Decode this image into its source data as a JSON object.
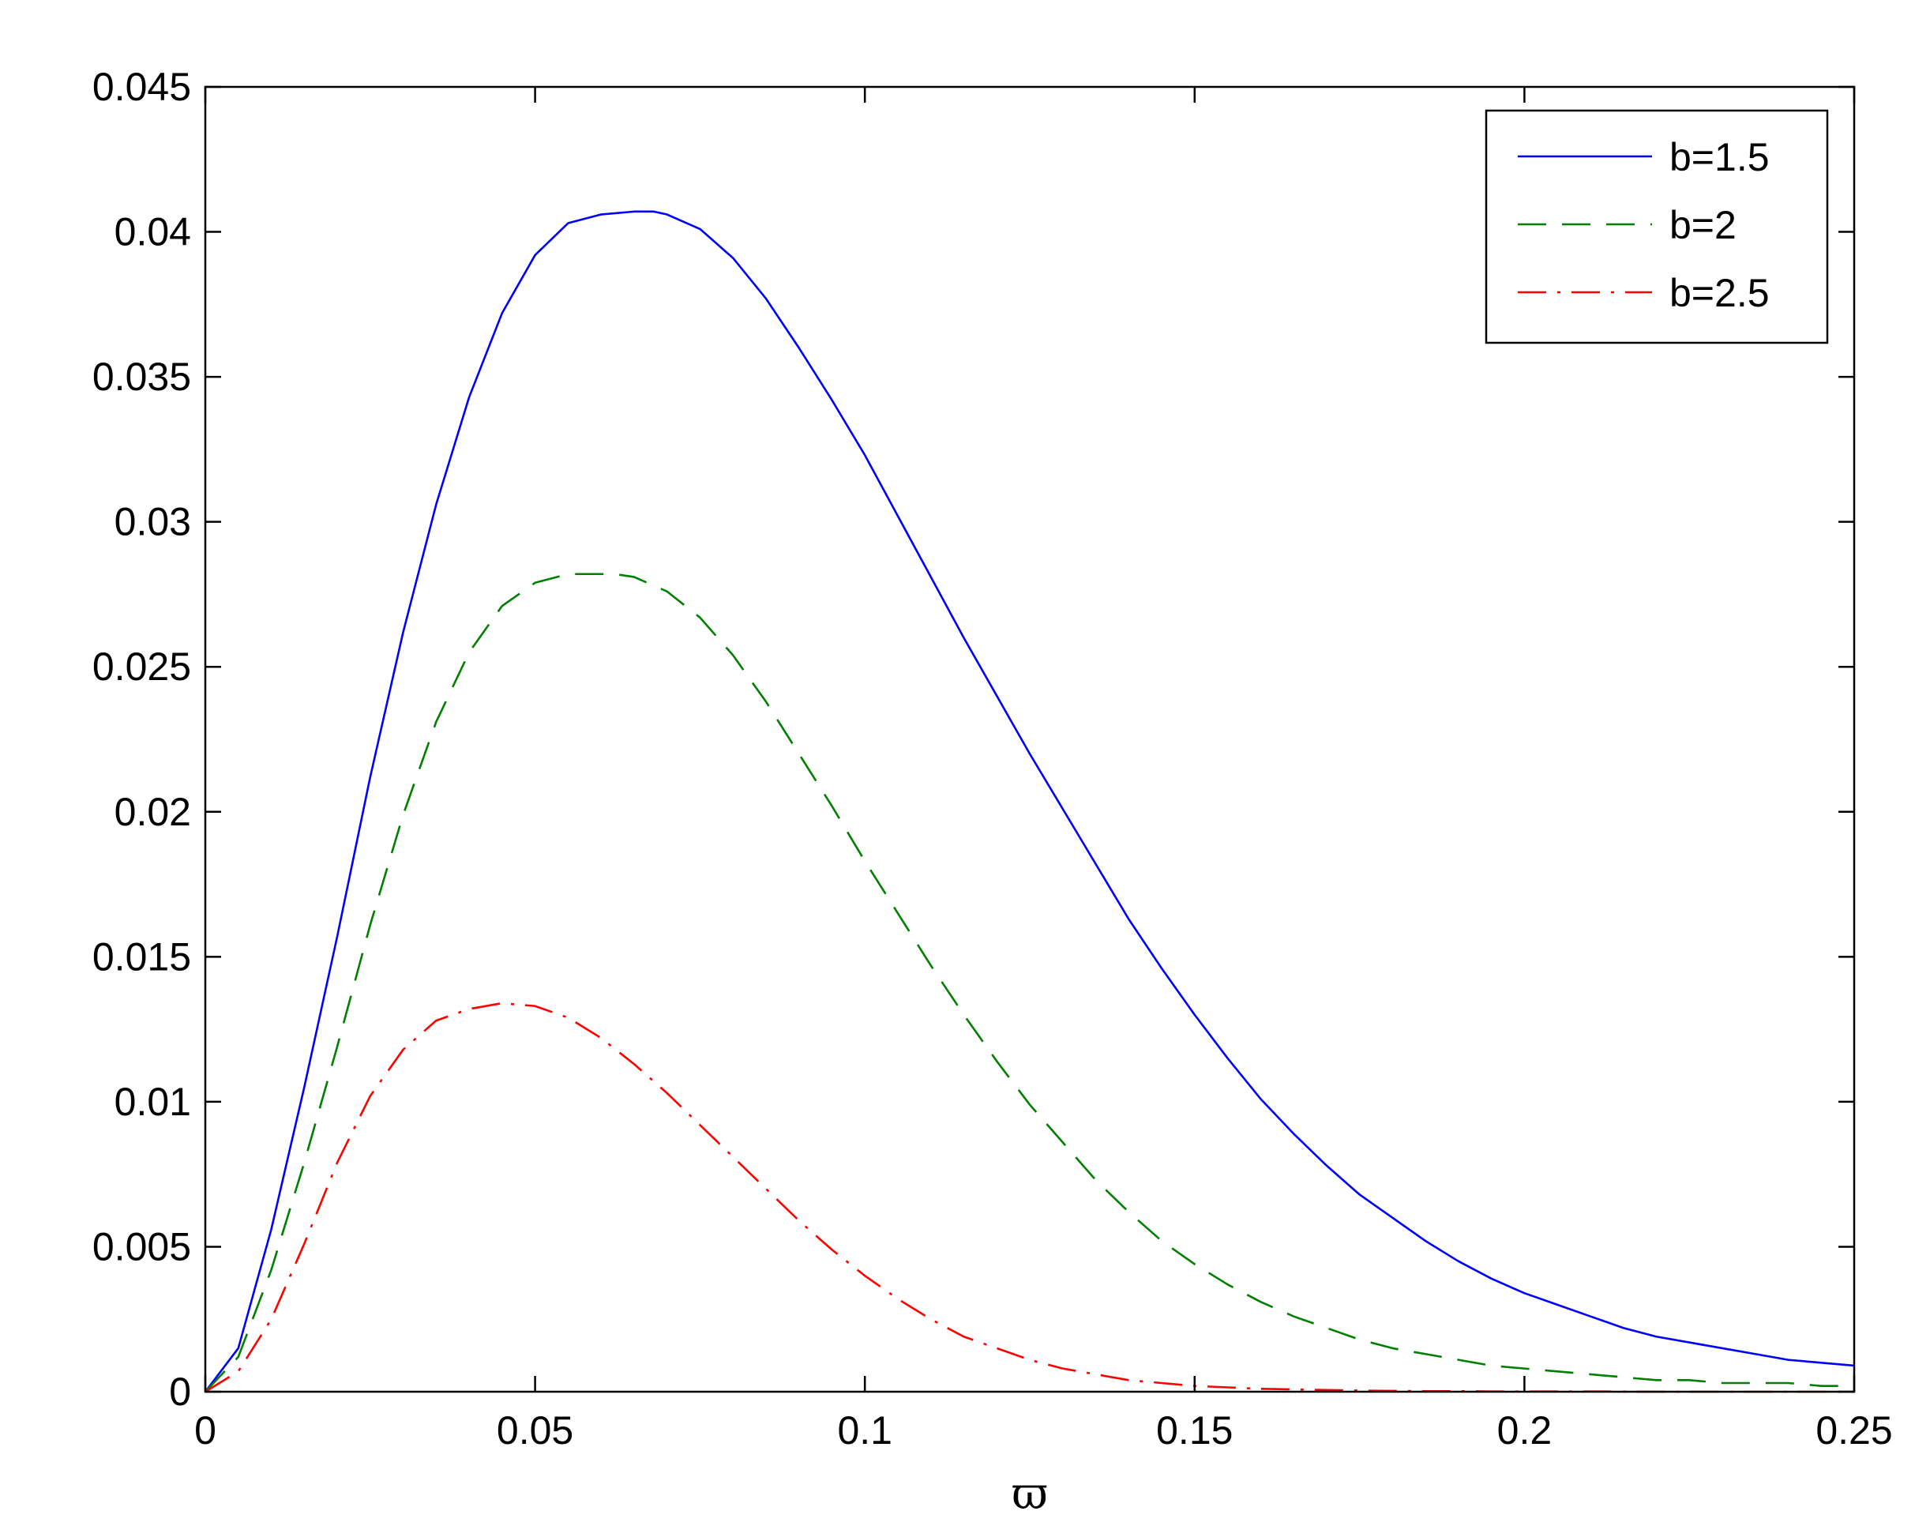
{
  "chart_data": {
    "type": "line",
    "title": "",
    "xlabel": "ϖ",
    "ylabel": "",
    "xlim": [
      0,
      0.25
    ],
    "ylim": [
      0,
      0.045
    ],
    "x_ticks": [
      "0",
      "0.05",
      "0.1",
      "0.15",
      "0.2",
      "0.25"
    ],
    "x_tick_values": [
      0,
      0.05,
      0.1,
      0.15,
      0.2,
      0.25
    ],
    "y_ticks": [
      "0",
      "0.005",
      "0.01",
      "0.015",
      "0.02",
      "0.025",
      "0.03",
      "0.035",
      "0.04",
      "0.045"
    ],
    "y_tick_values": [
      0,
      0.005,
      0.01,
      0.015,
      0.02,
      0.025,
      0.03,
      0.035,
      0.04,
      0.045
    ],
    "grid": false,
    "legend_position": "top-right",
    "series": [
      {
        "name": "b=1.5",
        "color": "#0000ff",
        "style": "solid",
        "x": [
          0,
          0.005,
          0.01,
          0.015,
          0.02,
          0.025,
          0.03,
          0.035,
          0.04,
          0.045,
          0.05,
          0.055,
          0.06,
          0.065,
          0.068,
          0.07,
          0.075,
          0.08,
          0.085,
          0.09,
          0.095,
          0.1,
          0.105,
          0.11,
          0.115,
          0.12,
          0.125,
          0.13,
          0.135,
          0.14,
          0.145,
          0.15,
          0.155,
          0.16,
          0.165,
          0.17,
          0.175,
          0.18,
          0.185,
          0.19,
          0.195,
          0.2,
          0.205,
          0.21,
          0.215,
          0.22,
          0.225,
          0.23,
          0.235,
          0.24,
          0.245,
          0.25
        ],
        "y": [
          0,
          0.0015,
          0.0056,
          0.0105,
          0.0157,
          0.0212,
          0.0262,
          0.0306,
          0.0343,
          0.0372,
          0.0392,
          0.0403,
          0.0406,
          0.0407,
          0.0407,
          0.0406,
          0.0401,
          0.0391,
          0.0377,
          0.036,
          0.0342,
          0.0323,
          0.0302,
          0.0281,
          0.026,
          0.024,
          0.022,
          0.0201,
          0.0182,
          0.0163,
          0.0146,
          0.013,
          0.0115,
          0.0101,
          0.0089,
          0.0078,
          0.0068,
          0.006,
          0.0052,
          0.0045,
          0.0039,
          0.0034,
          0.003,
          0.0026,
          0.0022,
          0.0019,
          0.0017,
          0.0015,
          0.0013,
          0.0011,
          0.001,
          0.0009
        ]
      },
      {
        "name": "b=2",
        "color": "#007f00",
        "style": "dashed",
        "x": [
          0,
          0.005,
          0.01,
          0.015,
          0.02,
          0.025,
          0.03,
          0.035,
          0.04,
          0.045,
          0.05,
          0.055,
          0.06,
          0.062,
          0.065,
          0.07,
          0.075,
          0.08,
          0.085,
          0.09,
          0.095,
          0.1,
          0.105,
          0.11,
          0.115,
          0.12,
          0.125,
          0.13,
          0.135,
          0.14,
          0.145,
          0.15,
          0.155,
          0.16,
          0.165,
          0.17,
          0.175,
          0.18,
          0.185,
          0.19,
          0.195,
          0.2,
          0.205,
          0.21,
          0.215,
          0.22,
          0.225,
          0.23,
          0.235,
          0.24,
          0.245,
          0.25
        ],
        "y": [
          0,
          0.0012,
          0.0042,
          0.0079,
          0.0119,
          0.0161,
          0.0199,
          0.0231,
          0.0255,
          0.0271,
          0.0279,
          0.0282,
          0.0282,
          0.0282,
          0.0281,
          0.0276,
          0.0267,
          0.0254,
          0.0238,
          0.022,
          0.0202,
          0.0183,
          0.0165,
          0.0147,
          0.013,
          0.0114,
          0.0099,
          0.0086,
          0.0073,
          0.0062,
          0.0052,
          0.0044,
          0.0037,
          0.0031,
          0.0026,
          0.0022,
          0.0018,
          0.0015,
          0.0013,
          0.0011,
          0.0009,
          0.0008,
          0.0007,
          0.0006,
          0.0005,
          0.0004,
          0.0004,
          0.0003,
          0.0003,
          0.0003,
          0.0002,
          0.0002
        ]
      },
      {
        "name": "b=2.5",
        "color": "#ff0000",
        "style": "dash-dot",
        "x": [
          0,
          0.005,
          0.01,
          0.015,
          0.02,
          0.025,
          0.03,
          0.035,
          0.04,
          0.045,
          0.05,
          0.055,
          0.06,
          0.065,
          0.07,
          0.075,
          0.08,
          0.085,
          0.09,
          0.095,
          0.1,
          0.105,
          0.11,
          0.115,
          0.12,
          0.125,
          0.13,
          0.135,
          0.14,
          0.145,
          0.15,
          0.155,
          0.16,
          0.165,
          0.17,
          0.175,
          0.18,
          0.185,
          0.19,
          0.195,
          0.2,
          0.21,
          0.22,
          0.23,
          0.24,
          0.25
        ],
        "y": [
          0,
          0.0007,
          0.0025,
          0.0051,
          0.0079,
          0.0102,
          0.0118,
          0.0128,
          0.0132,
          0.0134,
          0.0133,
          0.0129,
          0.0122,
          0.0113,
          0.0103,
          0.0092,
          0.0081,
          0.007,
          0.0059,
          0.0049,
          0.004,
          0.0032,
          0.0025,
          0.0019,
          0.0015,
          0.0011,
          0.0008,
          0.0006,
          0.0004,
          0.0003,
          0.0002,
          0.00015,
          0.0001,
          8e-05,
          6e-05,
          4e-05,
          3e-05,
          2e-05,
          2e-05,
          1e-05,
          1e-05,
          1e-05,
          0,
          0,
          0,
          0
        ]
      }
    ]
  }
}
